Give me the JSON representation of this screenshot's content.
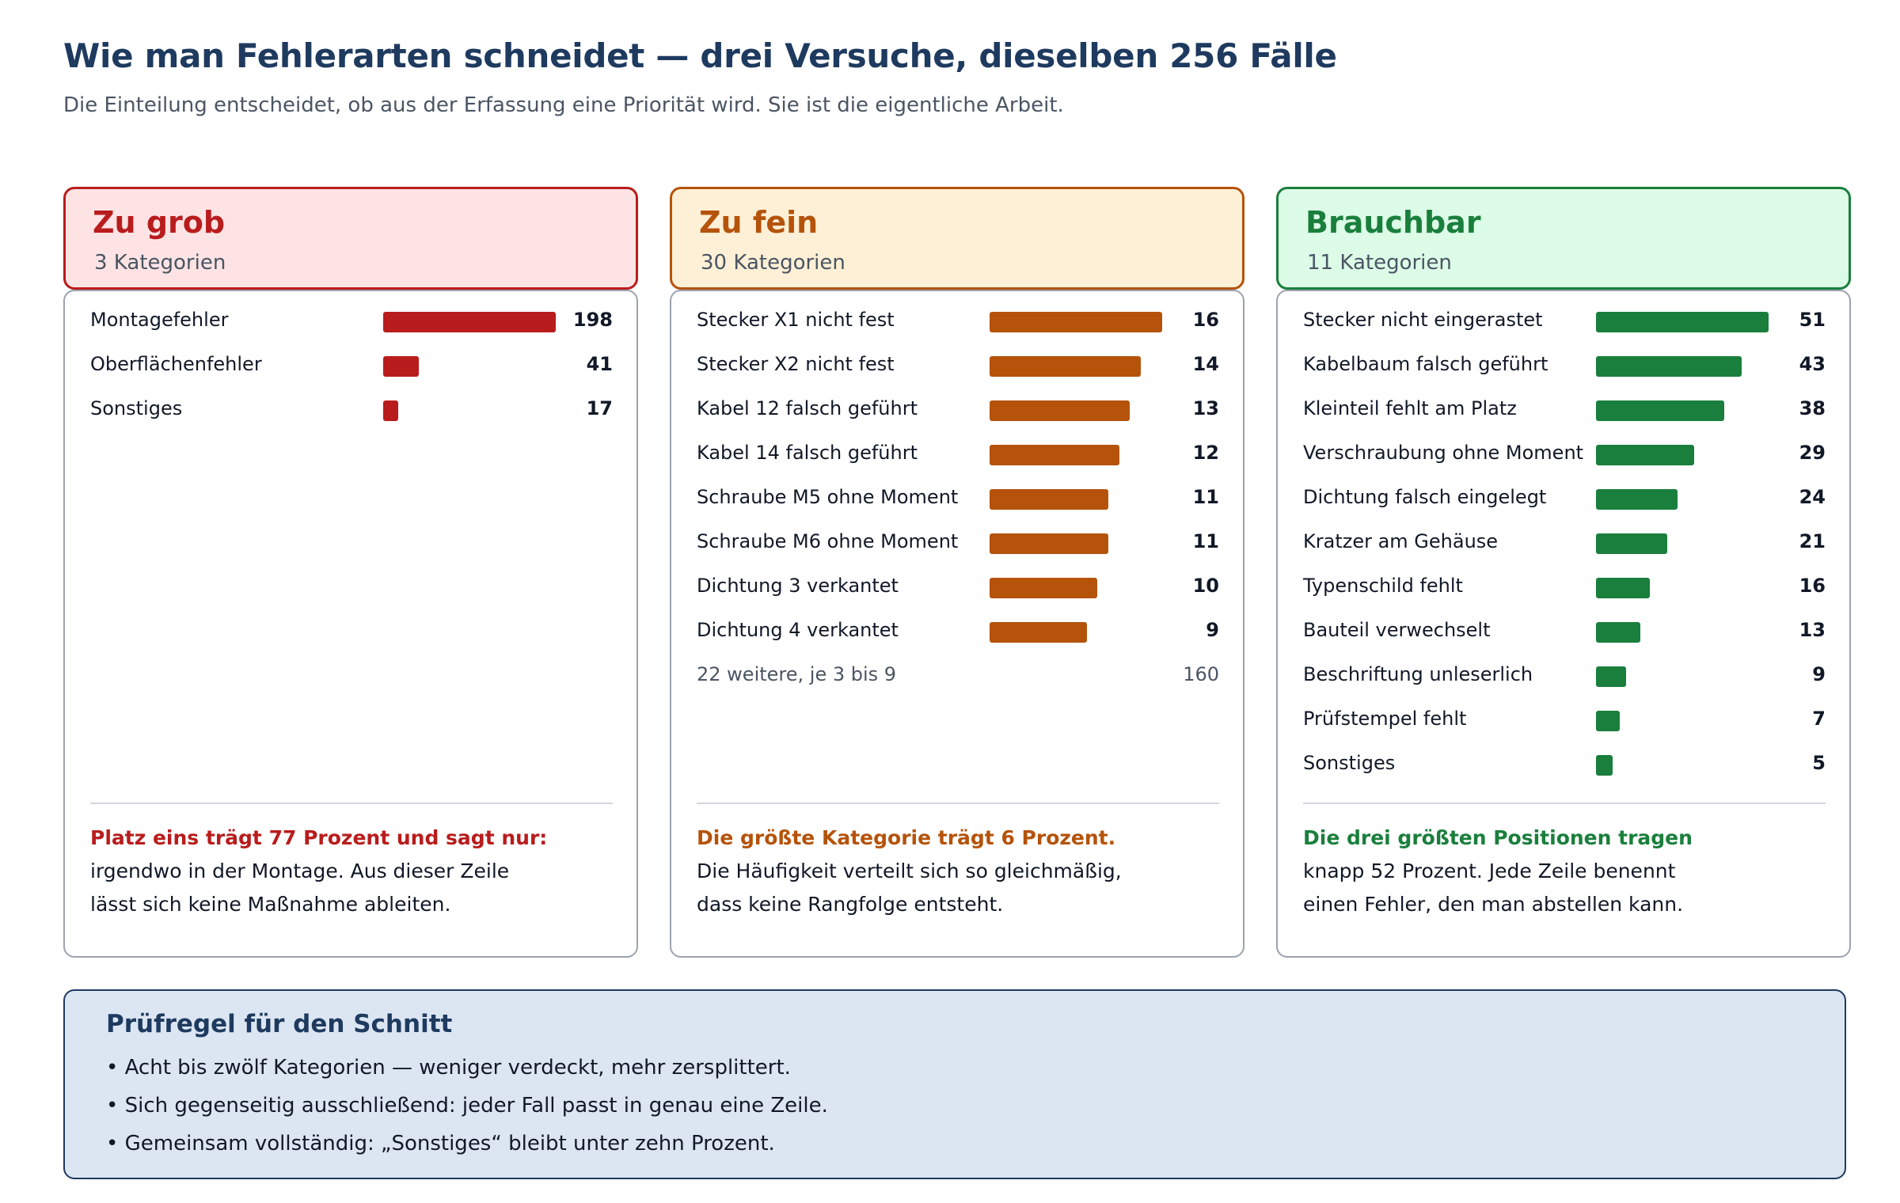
{
  "page": {
    "title": "Wie man Fehlerarten schneidet — drei Versuche, dieselben 256 Fälle",
    "subtitle": "Die Einteilung entscheidet, ob aus der Erfassung eine Priorität wird. Sie ist die eigentliche Arbeit."
  },
  "colors": {
    "coarse_accent": "#b91c1c",
    "coarse_bg": "#fde3e4",
    "fine_accent": "#b5530b",
    "fine_bg": "#fef0d6",
    "usable_accent": "#1a7f3c",
    "usable_bg": "#dcfce7",
    "navy": "#1e3a5f"
  },
  "chart_data": [
    {
      "type": "bar",
      "orientation": "horizontal",
      "title": "Zu grob",
      "subtitle": "3 Kategorien",
      "categories": [
        "Montagefehler",
        "Oberflächenfehler",
        "Sonstiges"
      ],
      "values": [
        198,
        41,
        17
      ],
      "note_lead": "Platz eins trägt 77 Prozent und sagt nur:",
      "note_lines": [
        "irgendwo in der Montage. Aus dieser Zeile",
        "lässt sich keine Maßnahme ableiten."
      ]
    },
    {
      "type": "bar",
      "orientation": "horizontal",
      "title": "Zu fein",
      "subtitle": "30 Kategorien",
      "categories": [
        "Stecker X1 nicht fest",
        "Stecker X2 nicht fest",
        "Kabel 12 falsch geführt",
        "Kabel 14 falsch geführt",
        "Schraube M5 ohne Moment",
        "Schraube M6 ohne Moment",
        "Dichtung 3 verkantet",
        "Dichtung 4 verkantet"
      ],
      "values": [
        16,
        14,
        13,
        12,
        11,
        11,
        10,
        9
      ],
      "summary": {
        "label": "22 weitere, je 3 bis 9",
        "value": 160
      },
      "note_lead": "Die größte Kategorie trägt 6 Prozent.",
      "note_lines": [
        "Die Häufigkeit verteilt sich so gleichmäßig,",
        "dass keine Rangfolge entsteht."
      ]
    },
    {
      "type": "bar",
      "orientation": "horizontal",
      "title": "Brauchbar",
      "subtitle": "11 Kategorien",
      "categories": [
        "Stecker nicht eingerastet",
        "Kabelbaum falsch geführt",
        "Kleinteil fehlt am Platz",
        "Verschraubung ohne Moment",
        "Dichtung falsch eingelegt",
        "Kratzer am Gehäuse",
        "Typenschild fehlt",
        "Bauteil verwechselt",
        "Beschriftung unleserlich",
        "Prüfstempel fehlt",
        "Sonstiges"
      ],
      "values": [
        51,
        43,
        38,
        29,
        24,
        21,
        16,
        13,
        9,
        7,
        5
      ],
      "note_lead": "Die drei größten Positionen tragen",
      "note_lines": [
        "knapp 52 Prozent. Jede Zeile benennt",
        "einen Fehler, den man abstellen kann."
      ]
    }
  ],
  "rule": {
    "title": "Prüfregel für den Schnitt",
    "items": [
      "• Acht bis zwölf Kategorien — weniger verdeckt, mehr zersplittert.",
      "• Sich gegenseitig ausschließend: jeder Fall passt in genau eine Zeile.",
      "• Gemeinsam vollständig: „Sonstiges“ bleibt unter zehn Prozent."
    ]
  }
}
